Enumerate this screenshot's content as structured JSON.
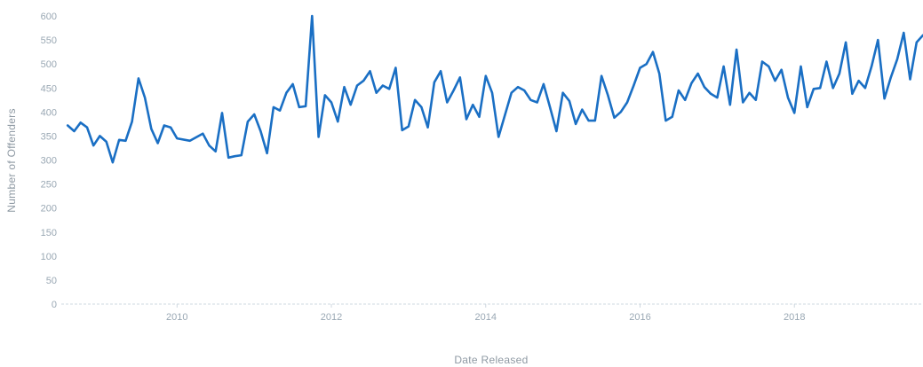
{
  "chart_data": {
    "type": "line",
    "xlabel": "Date Released",
    "ylabel": "Number of Offenders",
    "ylim": [
      0,
      600
    ],
    "yticks": [
      "0",
      "50",
      "100",
      "150",
      "200",
      "250",
      "300",
      "350",
      "400",
      "450",
      "500",
      "550",
      "600"
    ],
    "xlim": [
      "2008-07",
      "2019-09"
    ],
    "xticks": [
      "2010",
      "2012",
      "2014",
      "2016",
      "2018"
    ],
    "grid": false,
    "colors": {
      "line": "#1a6fc4"
    },
    "series": [
      {
        "x": [
          "2008-08",
          "2008-09",
          "2008-10",
          "2008-11",
          "2008-12",
          "2009-01",
          "2009-02",
          "2009-03",
          "2009-04",
          "2009-05",
          "2009-06",
          "2009-07",
          "2009-08",
          "2009-09",
          "2009-10",
          "2009-11",
          "2009-12",
          "2010-01",
          "2010-03",
          "2010-05",
          "2010-06",
          "2010-07",
          "2010-08",
          "2010-09",
          "2010-10",
          "2010-11",
          "2010-12",
          "2011-01",
          "2011-02",
          "2011-03",
          "2011-04",
          "2011-05",
          "2011-06",
          "2011-07",
          "2011-08",
          "2011-09",
          "2011-10",
          "2011-11",
          "2011-12",
          "2012-01",
          "2012-02",
          "2012-03",
          "2012-04",
          "2012-05",
          "2012-06",
          "2012-07",
          "2012-08",
          "2012-09",
          "2012-10",
          "2012-11",
          "2012-12",
          "2013-01",
          "2013-02",
          "2013-03",
          "2013-04",
          "2013-05",
          "2013-06",
          "2013-07",
          "2013-08",
          "2013-09",
          "2013-10",
          "2013-11",
          "2013-12",
          "2014-01",
          "2014-02",
          "2014-03",
          "2014-05",
          "2014-06",
          "2014-07",
          "2014-08",
          "2014-09",
          "2014-10",
          "2014-11",
          "2014-12",
          "2015-01",
          "2015-02",
          "2015-03",
          "2015-04",
          "2015-05",
          "2015-06",
          "2015-07",
          "2015-08",
          "2015-09",
          "2015-10",
          "2015-11",
          "2015-12",
          "2016-01",
          "2016-02",
          "2016-03",
          "2016-04",
          "2016-05",
          "2016-06",
          "2016-07",
          "2016-08",
          "2016-09",
          "2016-10",
          "2016-11",
          "2016-12",
          "2017-01",
          "2017-02",
          "2017-03",
          "2017-04",
          "2017-05",
          "2017-06",
          "2017-07",
          "2017-08",
          "2017-09",
          "2017-10",
          "2017-11",
          "2017-12",
          "2018-01",
          "2018-02",
          "2018-03",
          "2018-04",
          "2018-05",
          "2018-06",
          "2018-07",
          "2018-08",
          "2018-09",
          "2018-10",
          "2018-11",
          "2018-12",
          "2019-01",
          "2019-02",
          "2019-03",
          "2019-04",
          "2019-05",
          "2019-06",
          "2019-07",
          "2019-08",
          "2019-09"
        ],
        "values": [
          372,
          360,
          378,
          368,
          330,
          350,
          338,
          295,
          342,
          340,
          380,
          470,
          430,
          365,
          335,
          372,
          368,
          345,
          340,
          355,
          330,
          318,
          398,
          305,
          308,
          310,
          380,
          395,
          360,
          314,
          410,
          403,
          440,
          458,
          410,
          412,
          600,
          348,
          435,
          420,
          380,
          452,
          415,
          455,
          465,
          485,
          440,
          455,
          448,
          492,
          362,
          370,
          425,
          410,
          368,
          462,
          485,
          420,
          445,
          472,
          385,
          415,
          390,
          475,
          440,
          348,
          440,
          452,
          445,
          425,
          420,
          458,
          410,
          360,
          440,
          423,
          375,
          405,
          382,
          382,
          475,
          435,
          388,
          400,
          420,
          455,
          492,
          500,
          525,
          480,
          382,
          390,
          445,
          425,
          460,
          480,
          452,
          438,
          430,
          495,
          415,
          530,
          420,
          440,
          425,
          505,
          495,
          465,
          488,
          430,
          398,
          495,
          410,
          448,
          450,
          505,
          450,
          480,
          545,
          438,
          465,
          450,
          495,
          550,
          428,
          472,
          510,
          565,
          468,
          545,
          560
        ]
      }
    ]
  }
}
